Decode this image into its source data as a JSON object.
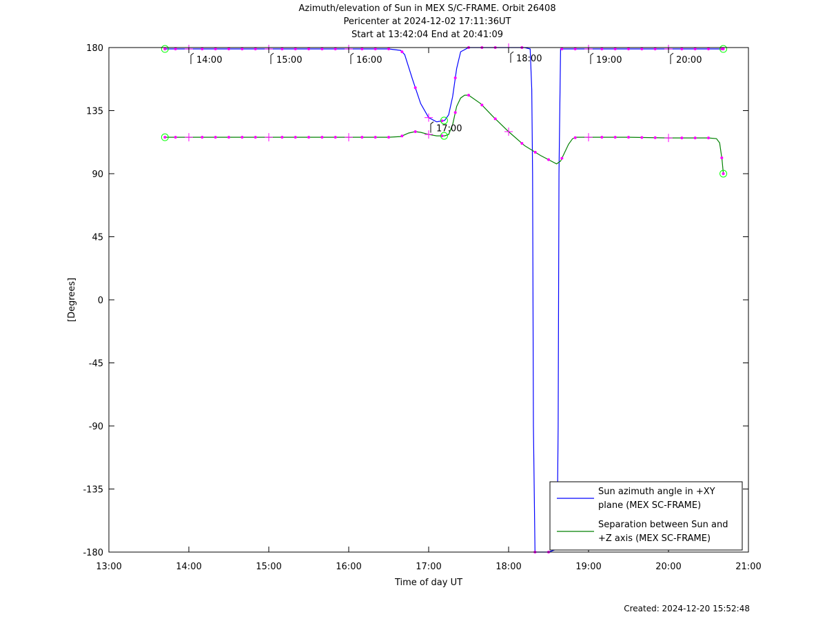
{
  "header": {
    "title": "Azimuth/elevation of Sun in MEX S/C-FRAME.  Orbit 26408",
    "pericenter": "Pericenter at 2024-12-02 17:11:36UT",
    "start_end": "Start at 13:42:04 End at 20:41:09"
  },
  "footer": {
    "created": "Created: 2024-12-20 15:52:48"
  },
  "colors": {
    "azimuth": "#0000ff",
    "separation": "#008000",
    "markers": "#ff00ff",
    "endpoints": "#00ff00"
  },
  "chart_data": {
    "type": "line",
    "xlabel": "Time of day UT",
    "ylabel": "[Degrees]",
    "xlim": [
      13.0,
      21.0
    ],
    "ylim": [
      -180,
      180
    ],
    "xticks": [
      13,
      14,
      15,
      16,
      17,
      18,
      19,
      20,
      21
    ],
    "xtick_labels": [
      "13:00",
      "14:00",
      "15:00",
      "16:00",
      "17:00",
      "18:00",
      "19:00",
      "20:00",
      "21:00"
    ],
    "yticks": [
      180,
      135,
      90,
      45,
      0,
      -45,
      -90,
      -135,
      -180
    ],
    "ytick_labels": [
      "180",
      "135",
      "90",
      "45",
      "0",
      "-45",
      "-90",
      "-135",
      "-180"
    ],
    "legend_position": "bottom-right",
    "time_annotations": [
      {
        "x": 14.0,
        "label": "14:00"
      },
      {
        "x": 15.0,
        "label": "15:00"
      },
      {
        "x": 16.0,
        "label": "16:00"
      },
      {
        "x": 17.0,
        "label": "17:00"
      },
      {
        "x": 18.0,
        "label": "18:00"
      },
      {
        "x": 19.0,
        "label": "19:00"
      },
      {
        "x": 20.0,
        "label": "20:00"
      }
    ],
    "series": [
      {
        "name": "Sun azimuth angle in +XY plane (MEX SC-FRAME)",
        "legend_lines": [
          "Sun azimuth angle in +XY",
          "plane (MEX SC-FRAME)"
        ],
        "x": [
          13.701,
          13.8,
          14.0,
          14.2,
          14.5,
          14.8,
          15.0,
          15.2,
          15.5,
          15.8,
          16.0,
          16.2,
          16.5,
          16.65,
          16.7,
          16.8,
          16.9,
          17.0,
          17.1,
          17.2,
          17.25,
          17.3,
          17.35,
          17.4,
          17.5,
          17.7,
          18.0,
          18.2,
          18.27,
          18.29,
          18.3,
          18.31,
          18.33,
          18.5,
          18.6,
          18.61,
          18.62,
          18.63,
          18.65,
          18.8,
          19.0,
          19.5,
          20.0,
          20.5,
          20.686
        ],
        "y": [
          179,
          179,
          179,
          179,
          179,
          179,
          179,
          179,
          179,
          179,
          179,
          179,
          179,
          178,
          175,
          157,
          140,
          130,
          127,
          128,
          132,
          145,
          165,
          177,
          180,
          180,
          180,
          180,
          179,
          150,
          90,
          -90,
          -180,
          -180,
          -178,
          -150,
          -90,
          90,
          179,
          179,
          179,
          179,
          179,
          179,
          179
        ]
      },
      {
        "name": "Separation between Sun and +Z axis (MEX SC-FRAME)",
        "legend_lines": [
          "Separation between Sun and",
          "+Z axis (MEX SC-FRAME)"
        ],
        "x": [
          13.701,
          14.0,
          14.5,
          15.0,
          15.5,
          16.0,
          16.5,
          16.65,
          16.75,
          16.83,
          16.9,
          17.0,
          17.1,
          17.2,
          17.25,
          17.3,
          17.35,
          17.4,
          17.45,
          17.5,
          17.65,
          17.8,
          18.0,
          18.2,
          18.4,
          18.6,
          18.65,
          18.7,
          18.75,
          18.8,
          18.85,
          19.0,
          19.5,
          20.0,
          20.5,
          20.6,
          20.64,
          20.67,
          20.686
        ],
        "y": [
          116,
          116,
          116,
          116,
          116,
          116,
          116,
          116.5,
          119,
          120,
          119.5,
          118,
          117,
          117,
          118,
          125,
          138,
          144,
          146,
          146,
          140,
          131,
          120,
          110,
          103,
          97,
          99,
          105,
          111,
          115,
          116,
          116,
          116,
          115.5,
          115.5,
          115,
          112,
          100,
          90
        ]
      }
    ]
  }
}
